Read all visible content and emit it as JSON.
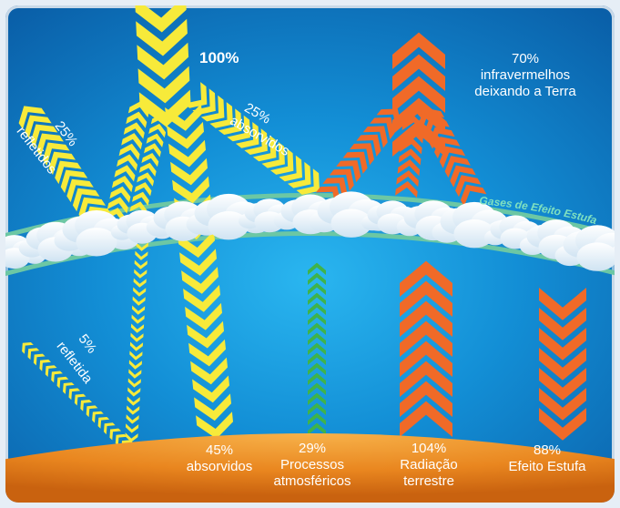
{
  "labels": {
    "incoming": "100%",
    "reflected_top_pct": "25%",
    "reflected_top_txt": "refletidos",
    "absorbed_top_pct": "25%",
    "absorbed_top_txt": "absorvidos",
    "ir_out_pct": "70%",
    "ir_out_l1": "infravermelhos",
    "ir_out_l2": "deixando a Terra",
    "greenhouse_band": "Gases de Efeito Estufa",
    "reflected_surface_pct": "5%",
    "reflected_surface_txt": "refletida",
    "ground_absorbed_pct": "45%",
    "ground_absorbed_txt": "absorvidos",
    "atmos_pct": "29%",
    "atmos_l1": "Processos",
    "atmos_l2": "atmosféricos",
    "radiation_pct": "104%",
    "radiation_l1": "Radiação",
    "radiation_l2": "terrestre",
    "greenhouse_pct": "88%",
    "greenhouse_txt": "Efeito Estufa"
  },
  "colors": {
    "solar": "#f7ea3a",
    "infrared": "#f06a28",
    "atmospheric": "#3fb34a",
    "band": "#6cc7a4",
    "ground": "#f29a2e"
  }
}
